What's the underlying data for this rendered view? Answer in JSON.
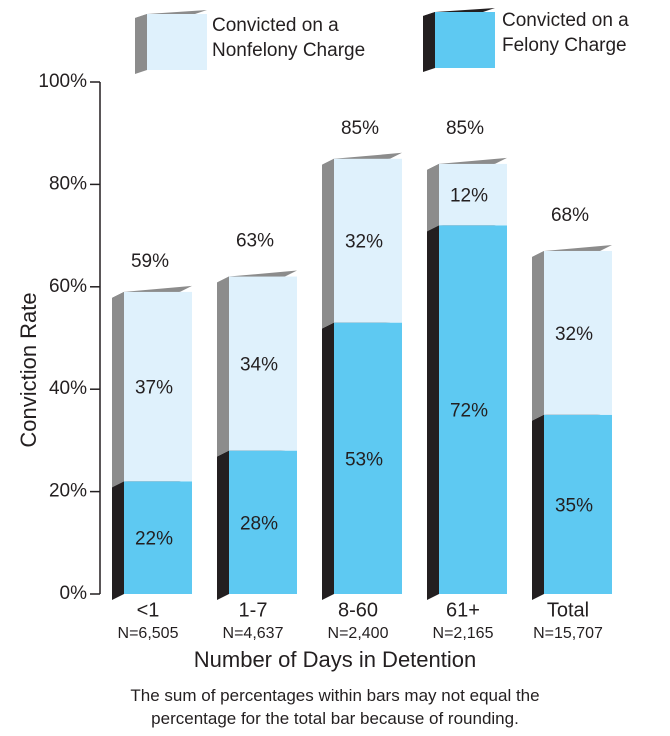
{
  "chart_data": {
    "type": "stacked_bar_3d",
    "ylabel": "Conviction Rate",
    "xlabel": "Number of Days in Detention",
    "note": "The sum of percentages within bars may not equal the percentage for the total bar because of rounding.",
    "categories": [
      "<1",
      "1-7",
      "8-60",
      "61+",
      "Total"
    ],
    "subcategories": [
      "N=6,505",
      "N=4,637",
      "N=2,400",
      "N=2,165",
      "N=15,707"
    ],
    "series": [
      {
        "name": "Convicted on a Felony Charge",
        "color": "#5ec9f2",
        "side_color": "#231f20",
        "values": [
          22,
          28,
          53,
          72,
          35
        ],
        "value_labels": [
          "22%",
          "28%",
          "53%",
          "72%",
          "35%"
        ]
      },
      {
        "name": "Convicted on a Nonfelony Charge",
        "color": "#dff1fc",
        "side_color": "#8c8c8c",
        "values": [
          37,
          34,
          32,
          12,
          32
        ],
        "value_labels": [
          "37%",
          "34%",
          "32%",
          "12%",
          "32%"
        ]
      }
    ],
    "totals": [
      59,
      63,
      85,
      85,
      68
    ],
    "total_labels": [
      "59%",
      "63%",
      "85%",
      "85%",
      "68%"
    ],
    "ylim": [
      0,
      100
    ],
    "yticks": [
      {
        "value": 0,
        "label": "0%"
      },
      {
        "value": 20,
        "label": "20%"
      },
      {
        "value": 40,
        "label": "40%"
      },
      {
        "value": 60,
        "label": "60%"
      },
      {
        "value": 80,
        "label": "80%"
      },
      {
        "value": 100,
        "label": "100%"
      }
    ]
  }
}
